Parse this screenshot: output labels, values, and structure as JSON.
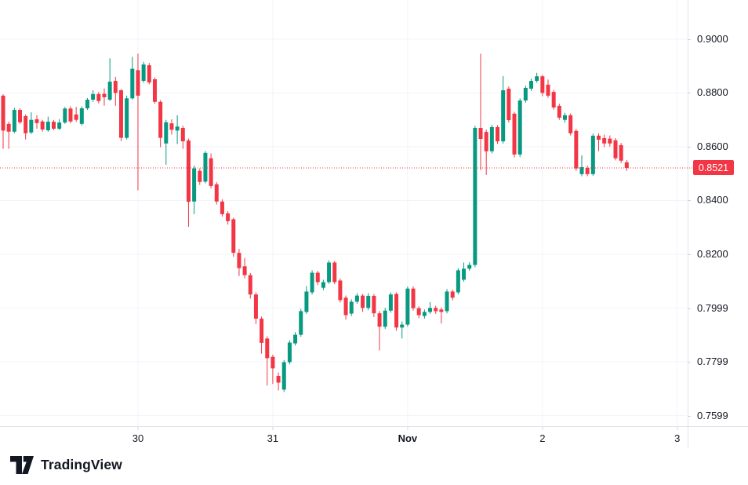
{
  "branding": {
    "logo_text": "TradingView"
  },
  "chart_data": {
    "type": "candlestick",
    "title": "",
    "up_color": "#089981",
    "down_color": "#F23645",
    "grid_color": "#F0F3FA",
    "axis_border_color": "#E0E3EB",
    "axis_text_color": "#131722",
    "legend_position": "none",
    "grid": true,
    "price_range": {
      "top": 0.9146,
      "bottom": 0.756
    },
    "y_ticks": [
      {
        "label": "0.9000",
        "value": 0.9
      },
      {
        "label": "0.8800",
        "value": 0.88
      },
      {
        "label": "0.8600",
        "value": 0.86
      },
      {
        "label": "0.8400",
        "value": 0.84
      },
      {
        "label": "0.8200",
        "value": 0.82
      },
      {
        "label": "0.7999",
        "value": 0.7999
      },
      {
        "label": "0.7799",
        "value": 0.7799
      },
      {
        "label": "0.7599",
        "value": 0.7599
      }
    ],
    "x_ticks": [
      {
        "label": "30",
        "index": 24,
        "bold": false
      },
      {
        "label": "31",
        "index": 48,
        "bold": false
      },
      {
        "label": "Nov",
        "index": 72,
        "bold": true
      },
      {
        "label": "2",
        "index": 96,
        "bold": false
      },
      {
        "label": "3",
        "index": 120,
        "bold": false
      }
    ],
    "last_price": {
      "label": "0.8521",
      "value": 0.8521,
      "color": "#F23645"
    },
    "candles": [
      [
        0.879,
        0.8795,
        0.8592,
        0.866
      ],
      [
        0.8685,
        0.8693,
        0.8592,
        0.8656
      ],
      [
        0.8656,
        0.8745,
        0.865,
        0.8737
      ],
      [
        0.8737,
        0.8743,
        0.8685,
        0.8691
      ],
      [
        0.8714,
        0.872,
        0.8627,
        0.865
      ],
      [
        0.8653,
        0.8728,
        0.8647,
        0.87
      ],
      [
        0.8702,
        0.8717,
        0.8667,
        0.8688
      ],
      [
        0.8694,
        0.87,
        0.8656,
        0.8664
      ],
      [
        0.8661,
        0.8712,
        0.8656,
        0.8693
      ],
      [
        0.8693,
        0.8699,
        0.8661,
        0.8667
      ],
      [
        0.8667,
        0.8702,
        0.8662,
        0.869
      ],
      [
        0.869,
        0.8748,
        0.8685,
        0.8742
      ],
      [
        0.8742,
        0.875,
        0.8688,
        0.8694
      ],
      [
        0.872,
        0.8748,
        0.8692,
        0.87
      ],
      [
        0.8685,
        0.875,
        0.8679,
        0.8743
      ],
      [
        0.8743,
        0.8781,
        0.8737,
        0.8775
      ],
      [
        0.8775,
        0.881,
        0.8767,
        0.8796
      ],
      [
        0.8796,
        0.8804,
        0.8761,
        0.877
      ],
      [
        0.8797,
        0.8817,
        0.8753,
        0.8784
      ],
      [
        0.8775,
        0.8929,
        0.877,
        0.8842
      ],
      [
        0.8845,
        0.886,
        0.8752,
        0.88
      ],
      [
        0.881,
        0.8815,
        0.8621,
        0.8633
      ],
      [
        0.8633,
        0.879,
        0.8627,
        0.878
      ],
      [
        0.878,
        0.8934,
        0.8775,
        0.889
      ],
      [
        0.8885,
        0.8946,
        0.8438,
        0.879
      ],
      [
        0.8845,
        0.8916,
        0.8838,
        0.8906
      ],
      [
        0.8903,
        0.8912,
        0.8832,
        0.8839
      ],
      [
        0.8851,
        0.8858,
        0.876,
        0.8767
      ],
      [
        0.8767,
        0.8773,
        0.8598,
        0.8633
      ],
      [
        0.8612,
        0.87,
        0.8533,
        0.8691
      ],
      [
        0.8687,
        0.8702,
        0.8645,
        0.8663
      ],
      [
        0.866,
        0.8717,
        0.861,
        0.8675
      ],
      [
        0.867,
        0.8678,
        0.8592,
        0.862
      ],
      [
        0.8623,
        0.863,
        0.8302,
        0.8395
      ],
      [
        0.8396,
        0.853,
        0.8349,
        0.8519
      ],
      [
        0.851,
        0.8519,
        0.8458,
        0.8469
      ],
      [
        0.847,
        0.8584,
        0.8464,
        0.8577
      ],
      [
        0.8557,
        0.8575,
        0.8445,
        0.8454
      ],
      [
        0.846,
        0.8468,
        0.8385,
        0.8396
      ],
      [
        0.8396,
        0.8404,
        0.834,
        0.8349
      ],
      [
        0.8352,
        0.836,
        0.831,
        0.8323
      ],
      [
        0.833,
        0.8336,
        0.819,
        0.8205
      ],
      [
        0.8205,
        0.822,
        0.8119,
        0.8148
      ],
      [
        0.8155,
        0.8186,
        0.811,
        0.8122
      ],
      [
        0.8122,
        0.813,
        0.8035,
        0.805
      ],
      [
        0.805,
        0.8058,
        0.794,
        0.796
      ],
      [
        0.796,
        0.7968,
        0.783,
        0.787
      ],
      [
        0.7886,
        0.7894,
        0.7711,
        0.7813
      ],
      [
        0.7818,
        0.7826,
        0.7717,
        0.7775
      ],
      [
        0.7747,
        0.776,
        0.7693,
        0.7722
      ],
      [
        0.7696,
        0.7806,
        0.7687,
        0.7798
      ],
      [
        0.7798,
        0.7879,
        0.779,
        0.7871
      ],
      [
        0.7868,
        0.791,
        0.786,
        0.79
      ],
      [
        0.79,
        0.7996,
        0.7892,
        0.7988
      ],
      [
        0.7985,
        0.8081,
        0.7978,
        0.8061
      ],
      [
        0.8058,
        0.814,
        0.805,
        0.8131
      ],
      [
        0.8131,
        0.8138,
        0.8085,
        0.8096
      ],
      [
        0.8075,
        0.8105,
        0.8066,
        0.8096
      ],
      [
        0.8096,
        0.8177,
        0.809,
        0.8169
      ],
      [
        0.8169,
        0.8175,
        0.8088,
        0.8096
      ],
      [
        0.8102,
        0.811,
        0.802,
        0.8029
      ],
      [
        0.8038,
        0.8046,
        0.7956,
        0.7973
      ],
      [
        0.7979,
        0.8032,
        0.797,
        0.8023
      ],
      [
        0.8023,
        0.8055,
        0.8015,
        0.8046
      ],
      [
        0.8046,
        0.8052,
        0.7985,
        0.8
      ],
      [
        0.8,
        0.8055,
        0.7992,
        0.8045
      ],
      [
        0.8045,
        0.8052,
        0.7966,
        0.798
      ],
      [
        0.798,
        0.7988,
        0.7842,
        0.793
      ],
      [
        0.793,
        0.8,
        0.7922,
        0.799
      ],
      [
        0.799,
        0.8058,
        0.7982,
        0.805
      ],
      [
        0.8052,
        0.8058,
        0.7915,
        0.7927
      ],
      [
        0.7927,
        0.795,
        0.7886,
        0.7938
      ],
      [
        0.7938,
        0.808,
        0.793,
        0.8072
      ],
      [
        0.8072,
        0.808,
        0.799,
        0.7999
      ],
      [
        0.7999,
        0.8006,
        0.7962,
        0.7973
      ],
      [
        0.797,
        0.7994,
        0.796,
        0.7985
      ],
      [
        0.7985,
        0.8022,
        0.7978,
        0.8
      ],
      [
        0.8,
        0.8008,
        0.7978,
        0.7988
      ],
      [
        0.7994,
        0.8002,
        0.7942,
        0.7985
      ],
      [
        0.7988,
        0.807,
        0.798,
        0.8061
      ],
      [
        0.8061,
        0.8068,
        0.8028,
        0.8038
      ],
      [
        0.8058,
        0.8148,
        0.805,
        0.814
      ],
      [
        0.8105,
        0.8169,
        0.8098,
        0.8146
      ],
      [
        0.8146,
        0.817,
        0.8138,
        0.816
      ],
      [
        0.816,
        0.8678,
        0.8152,
        0.867
      ],
      [
        0.867,
        0.8946,
        0.8513,
        0.8629
      ],
      [
        0.8655,
        0.8664,
        0.8495,
        0.8583
      ],
      [
        0.8583,
        0.8681,
        0.8575,
        0.8673
      ],
      [
        0.8673,
        0.868,
        0.861,
        0.862
      ],
      [
        0.862,
        0.8863,
        0.8612,
        0.881
      ],
      [
        0.8816,
        0.8824,
        0.869,
        0.8699
      ],
      [
        0.8723,
        0.873,
        0.856,
        0.8571
      ],
      [
        0.8571,
        0.878,
        0.8562,
        0.8772
      ],
      [
        0.8772,
        0.8827,
        0.8764,
        0.8819
      ],
      [
        0.8816,
        0.8853,
        0.8808,
        0.8845
      ],
      [
        0.8845,
        0.8875,
        0.8838,
        0.8862
      ],
      [
        0.8862,
        0.8868,
        0.8788,
        0.88
      ],
      [
        0.8831,
        0.885,
        0.8782,
        0.879
      ],
      [
        0.8804,
        0.8812,
        0.8738,
        0.8746
      ],
      [
        0.8752,
        0.876,
        0.87,
        0.8708
      ],
      [
        0.87,
        0.8726,
        0.869,
        0.8717
      ],
      [
        0.8717,
        0.8724,
        0.8642,
        0.865
      ],
      [
        0.8659,
        0.8666,
        0.851,
        0.8519
      ],
      [
        0.8498,
        0.8568,
        0.849,
        0.8524
      ],
      [
        0.8521,
        0.853,
        0.849,
        0.8498
      ],
      [
        0.8498,
        0.8649,
        0.8492,
        0.8641
      ],
      [
        0.8641,
        0.865,
        0.8583,
        0.8626
      ],
      [
        0.8632,
        0.8645,
        0.8598,
        0.8612
      ],
      [
        0.863,
        0.8642,
        0.86,
        0.8612
      ],
      [
        0.8624,
        0.8632,
        0.8549,
        0.8557
      ],
      [
        0.8606,
        0.8614,
        0.8539,
        0.8548
      ],
      [
        0.8542,
        0.855,
        0.851,
        0.8521
      ]
    ]
  }
}
